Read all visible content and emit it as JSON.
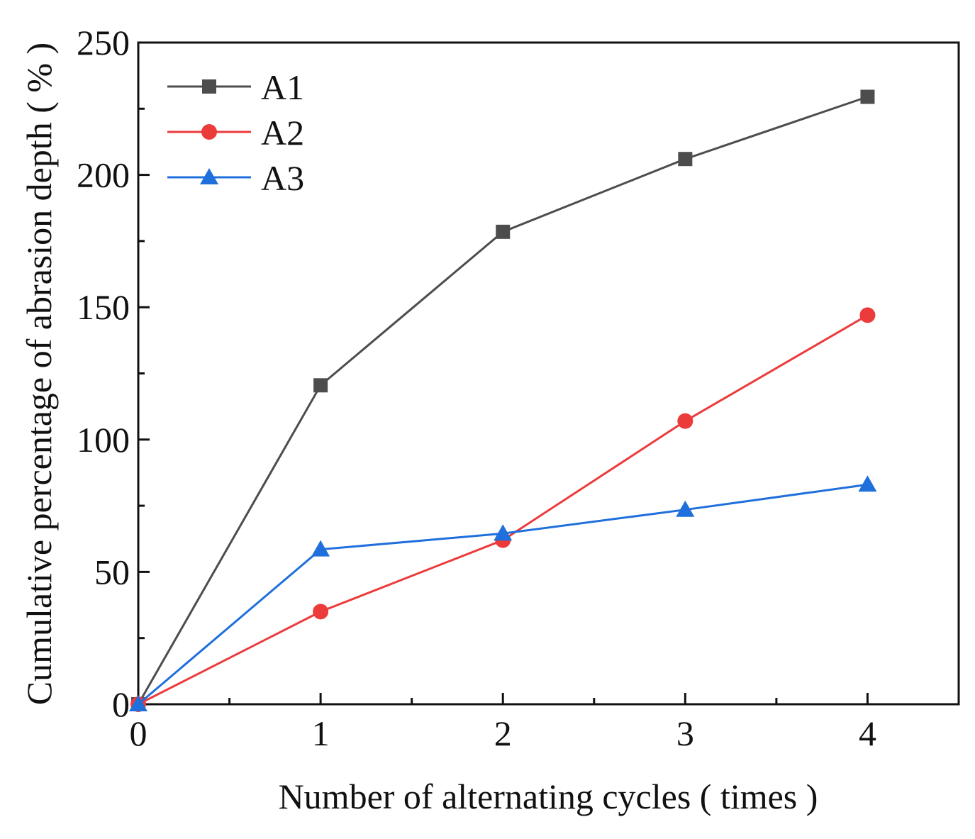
{
  "chart_data": {
    "type": "line",
    "title": "",
    "xlabel": "Number of alternating cycles ( times )",
    "ylabel": "Cumulative percentage of abrasion depth ( % )",
    "xlim": [
      0,
      4.5
    ],
    "ylim": [
      0,
      250
    ],
    "x_ticks": [
      0,
      1,
      2,
      3,
      4
    ],
    "y_ticks": [
      0,
      50,
      100,
      150,
      200,
      250
    ],
    "grid": false,
    "legend_position": "top-left",
    "series": [
      {
        "name": "A1",
        "x": [
          0,
          1,
          2,
          3,
          4
        ],
        "values": [
          0,
          120.5,
          178.5,
          206,
          229.5
        ],
        "color": "#4d4d4d",
        "marker": "square"
      },
      {
        "name": "A2",
        "x": [
          0,
          1,
          2,
          3,
          4
        ],
        "values": [
          0,
          35,
          62,
          107,
          147
        ],
        "color": "#ec3b3b",
        "marker": "circle"
      },
      {
        "name": "A3",
        "x": [
          0,
          1,
          2,
          3,
          4
        ],
        "values": [
          0,
          58.5,
          64.5,
          73.5,
          83
        ],
        "color": "#1f6fdc",
        "marker": "triangle"
      }
    ]
  }
}
